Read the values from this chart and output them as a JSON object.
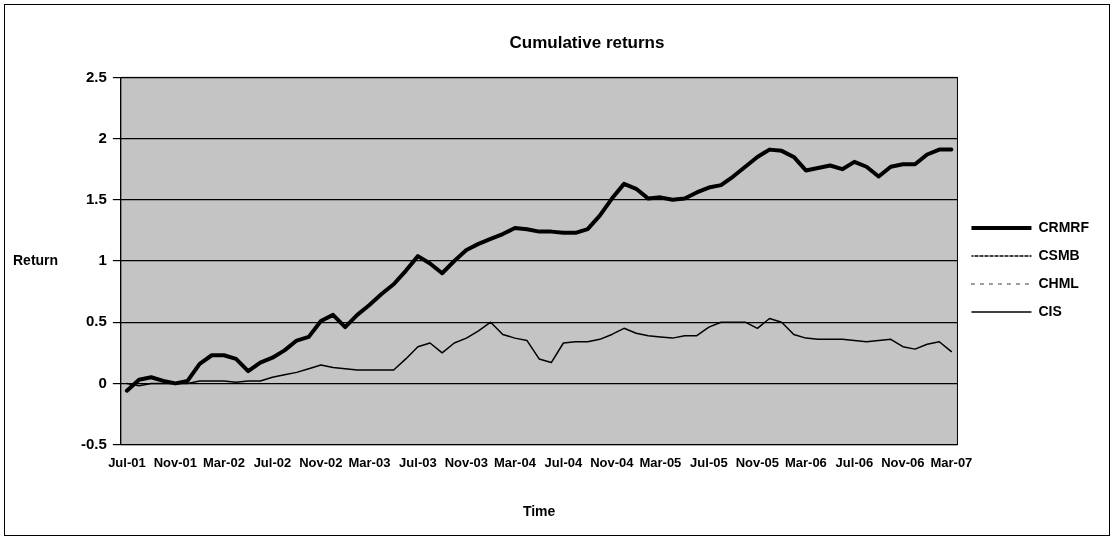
{
  "chart_data": {
    "type": "line",
    "title": "Cumulative returns",
    "xlabel": "Time",
    "ylabel": "Return",
    "categories": [
      "Jul-01",
      null,
      null,
      null,
      "Nov-01",
      null,
      null,
      null,
      "Mar-02",
      null,
      null,
      null,
      "Jul-02",
      null,
      null,
      null,
      "Nov-02",
      null,
      null,
      null,
      "Mar-03",
      null,
      null,
      null,
      "Jul-03",
      null,
      null,
      null,
      "Nov-03",
      null,
      null,
      null,
      "Mar-04",
      null,
      null,
      null,
      "Jul-04",
      null,
      null,
      null,
      "Nov-04",
      null,
      null,
      null,
      "Mar-05",
      null,
      null,
      null,
      "Jul-05",
      null,
      null,
      null,
      "Nov-05",
      null,
      null,
      null,
      "Mar-06",
      null,
      null,
      null,
      "Jul-06",
      null,
      null,
      null,
      "Nov-06",
      null,
      null,
      null,
      "Mar-07"
    ],
    "series": [
      {
        "name": "CRMRF",
        "color": "#000000",
        "line_style": "solid",
        "values": [
          -0.06,
          0.03,
          0.05,
          0.02,
          0.0,
          0.02,
          0.16,
          0.23,
          0.23,
          0.2,
          0.1,
          0.17,
          0.21,
          0.27,
          0.35,
          0.38,
          0.51,
          0.56,
          0.46,
          0.56,
          0.64,
          0.73,
          0.81,
          0.92,
          1.04,
          0.98,
          0.9,
          1.0,
          1.09,
          1.14,
          1.18,
          1.22,
          1.27,
          1.26,
          1.24,
          1.24,
          1.23,
          1.23,
          1.26,
          1.37,
          1.51,
          1.63,
          1.59,
          1.51,
          1.52,
          1.5,
          1.51,
          1.56,
          1.6,
          1.62,
          1.69,
          1.77,
          1.85,
          1.91,
          1.9,
          1.85,
          1.74,
          1.76,
          1.78,
          1.75,
          1.81,
          1.77,
          1.69,
          1.77,
          1.79,
          1.79,
          1.87,
          1.91,
          1.91
        ]
      },
      {
        "name": "CSMB",
        "color": "#000000",
        "line_style": "dashed",
        "values": [
          null,
          null,
          null,
          null,
          null,
          null,
          null,
          null,
          null,
          null,
          null,
          null,
          null,
          null,
          null,
          null,
          null,
          null,
          null,
          null,
          null,
          null,
          null,
          null,
          null,
          null,
          null,
          null,
          null,
          null,
          null,
          null,
          null,
          null,
          null,
          null,
          null,
          null,
          null,
          null,
          null,
          null,
          null,
          null,
          null,
          null,
          null,
          null,
          null,
          null,
          null,
          null,
          null,
          null,
          null,
          null,
          null,
          null,
          null,
          null,
          null,
          null,
          null,
          null,
          null,
          null,
          null,
          null,
          null
        ]
      },
      {
        "name": "CHML",
        "color": "#000000",
        "line_style": "dotted",
        "values": [
          null,
          null,
          null,
          null,
          null,
          null,
          null,
          null,
          null,
          null,
          null,
          null,
          null,
          null,
          null,
          null,
          null,
          null,
          null,
          null,
          null,
          null,
          null,
          null,
          null,
          null,
          null,
          null,
          null,
          null,
          null,
          null,
          null,
          null,
          null,
          null,
          null,
          null,
          null,
          null,
          null,
          null,
          null,
          null,
          null,
          null,
          null,
          null,
          null,
          null,
          null,
          null,
          null,
          null,
          null,
          null,
          null,
          null,
          null,
          null,
          null,
          null,
          null,
          null,
          null,
          null,
          null,
          null,
          null
        ]
      },
      {
        "name": "CIS",
        "color": "#000000",
        "line_style": "solid",
        "values": [
          0.0,
          -0.02,
          0.0,
          0.0,
          0.0,
          0.0,
          0.02,
          0.02,
          0.02,
          0.01,
          0.02,
          0.02,
          0.05,
          0.07,
          0.09,
          0.12,
          0.15,
          0.13,
          0.12,
          0.11,
          0.11,
          0.11,
          0.11,
          0.2,
          0.3,
          0.33,
          0.25,
          0.33,
          0.37,
          0.43,
          0.5,
          0.4,
          0.37,
          0.35,
          0.2,
          0.17,
          0.33,
          0.34,
          0.34,
          0.36,
          0.4,
          0.45,
          0.41,
          0.39,
          0.38,
          0.37,
          0.39,
          0.39,
          0.46,
          0.5,
          0.5,
          0.5,
          0.45,
          0.53,
          0.5,
          0.4,
          0.37,
          0.36,
          0.36,
          0.36,
          0.35,
          0.34,
          0.35,
          0.36,
          0.3,
          0.28,
          0.32,
          0.34,
          0.26
        ]
      }
    ],
    "ylim": [
      -0.5,
      2.5
    ],
    "yticks": [
      -0.5,
      0,
      0.5,
      1,
      1.5,
      2,
      2.5
    ],
    "grid": "y",
    "legend": "right",
    "marker": "none"
  }
}
